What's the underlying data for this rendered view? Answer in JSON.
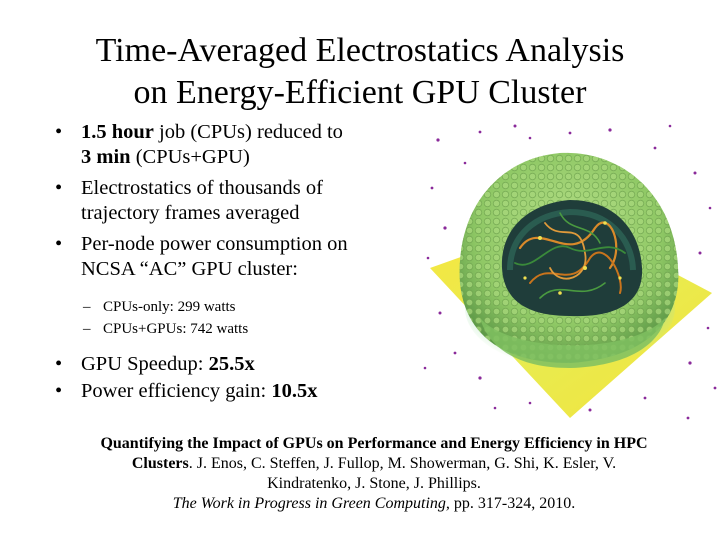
{
  "title": {
    "line1": "Time-Averaged Electrostatics Analysis",
    "line2": "on Energy-Efficient GPU Cluster"
  },
  "bullets": {
    "b1": {
      "bold1": "1.5 hour",
      "text1": " job (CPUs) reduced to",
      "bold2": "3 min",
      "text2": " (CPUs+GPU)"
    },
    "b2": {
      "line1": "Electrostatics of thousands of",
      "line2": "trajectory frames averaged"
    },
    "b3": {
      "line1": "Per-node power consumption on",
      "line2": "NCSA “AC” GPU cluster:"
    },
    "sub1": "CPUs-only: 299 watts",
    "sub2": "CPUs+GPUs: 742 watts",
    "b4": {
      "text": "GPU Speedup: ",
      "bold": "25.5x"
    },
    "b5": {
      "text": "Power efficiency gain: ",
      "bold": "10.5x"
    },
    "bullet_char": "•",
    "dash_char": "–"
  },
  "reference": {
    "bold": "Quantifying the Impact of GPUs on Performance and Energy Efficiency in HPC Clusters",
    "authors": ". J. Enos, C. Steffen, J. Fullop, M. Showerman, G. Shi, K. Esler, V. Kindratenko, J. Stone, J. Phillips.",
    "venue": "The Work in Progress in Green Computing,",
    "pages": "  pp. 317-324, 2010."
  },
  "colors": {
    "plane_yellow": "#f5e640",
    "plane_cyan": "#3ec8e0",
    "capsid_green": "#9ccf6e",
    "capsid_dark": "#4a8a3a",
    "interior_dark": "#1f3d3a",
    "rna_orange": "#d98a2a",
    "ion_purple": "#8a2a9a"
  }
}
